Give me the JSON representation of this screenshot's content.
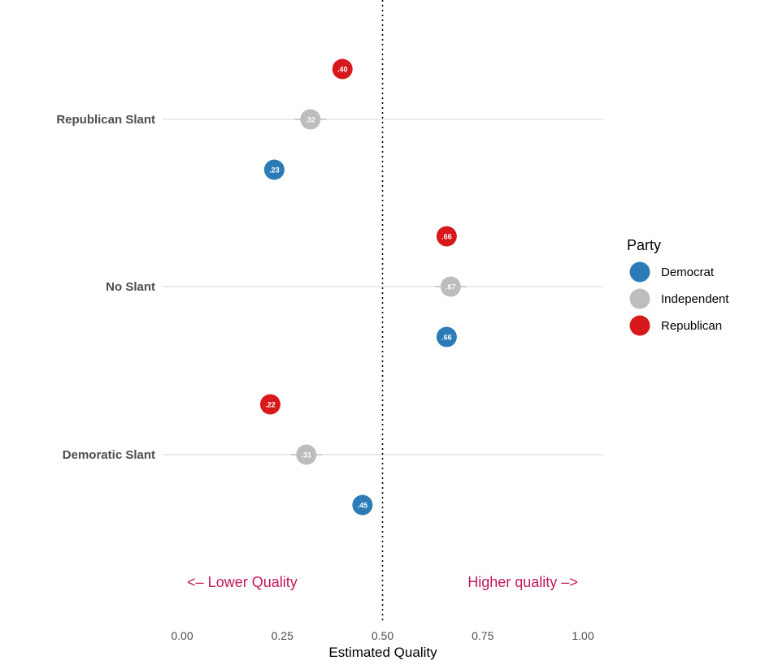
{
  "chart_data": {
    "type": "scatter",
    "xlabel": "Estimated Quality",
    "ylabel": "",
    "xlim": [
      0,
      1
    ],
    "x_ticks": [
      "0.00",
      "0.25",
      "0.50",
      "0.75",
      "1.00"
    ],
    "x_tick_values": [
      0,
      0.25,
      0.5,
      0.75,
      1.0
    ],
    "reference_line": 0.5,
    "categories": [
      "Republican Slant",
      "No Slant",
      "Demoratic Slant"
    ],
    "series": [
      {
        "name": "Republican",
        "color": "#d7191c",
        "values": [
          0.4,
          0.66,
          0.22
        ],
        "labels": [
          ".40",
          ".66",
          ".22"
        ]
      },
      {
        "name": "Independent",
        "color": "#bdbdbd",
        "values": [
          0.32,
          0.67,
          0.31
        ],
        "labels": [
          ".32",
          ".67",
          ".31"
        ]
      },
      {
        "name": "Democrat",
        "color": "#2c7bb6",
        "values": [
          0.23,
          0.66,
          0.45
        ],
        "labels": [
          ".23",
          ".66",
          ".45"
        ]
      }
    ],
    "annotations": [
      {
        "text": "<– Lower Quality",
        "x": 0.15,
        "color": "#c2185b"
      },
      {
        "text": "Higher quality –>",
        "x": 0.85,
        "color": "#c2185b"
      }
    ],
    "legend": {
      "title": "Party",
      "position": "right",
      "entries": [
        {
          "label": "Democrat",
          "color": "#2c7bb6"
        },
        {
          "label": "Independent",
          "color": "#bdbdbd"
        },
        {
          "label": "Republican",
          "color": "#d7191c"
        }
      ]
    }
  }
}
